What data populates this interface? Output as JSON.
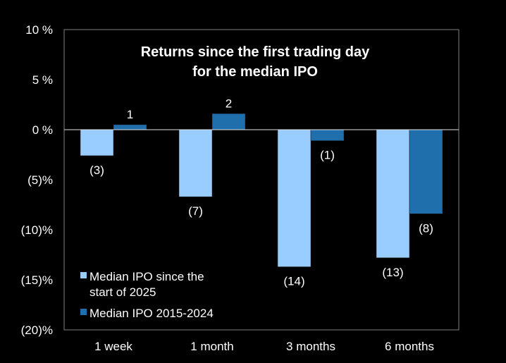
{
  "chart_data": {
    "type": "bar",
    "title_lines": [
      "Returns since the first trading day",
      "for the median IPO"
    ],
    "categories": [
      "1 week",
      "1 month",
      "3 months",
      "6 months"
    ],
    "ylim": [
      -20,
      10
    ],
    "yticks": [
      10,
      5,
      0,
      -5,
      -10,
      -15,
      -20
    ],
    "ytick_labels": [
      "10 %",
      "5 %",
      "0 %",
      "(5)%",
      "(10)%",
      "(15)%",
      "(20)%"
    ],
    "grid": false,
    "legend_position": "bottom-left",
    "series": [
      {
        "name_lines": [
          "Median IPO since the",
          "start of 2025"
        ],
        "color": "#99ccff",
        "values": [
          -2.6,
          -6.7,
          -13.7,
          -12.8
        ],
        "labels": [
          "(3)",
          "(7)",
          "(14)",
          "(13)"
        ]
      },
      {
        "name_lines": [
          "Median IPO 2015-2024"
        ],
        "color": "#1f6fad",
        "values": [
          0.5,
          1.6,
          -1.1,
          -8.4
        ],
        "labels": [
          "1",
          "2",
          "(1)",
          "(8)"
        ]
      }
    ]
  }
}
